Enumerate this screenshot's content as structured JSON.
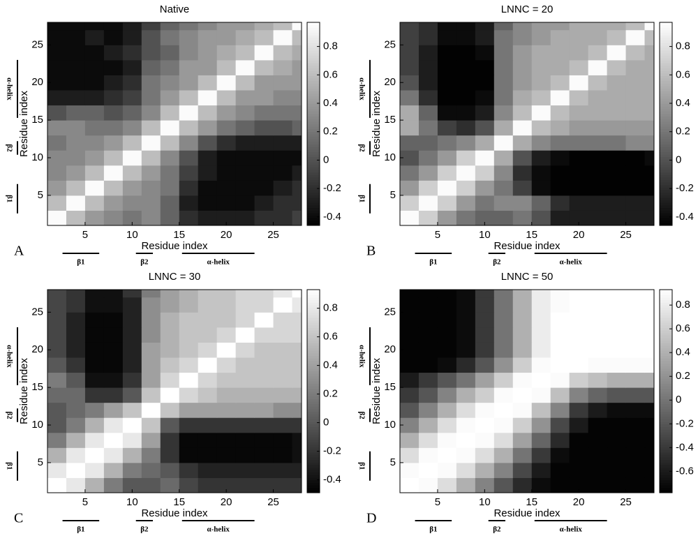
{
  "chart_data": [
    {
      "type": "contour",
      "panel_label": "A",
      "title": "Native",
      "xlabel": "Residue index",
      "ylabel": "Residue index",
      "xlim": [
        1,
        28
      ],
      "ylim": [
        1,
        28
      ],
      "xticks": [
        5,
        10,
        15,
        20,
        25
      ],
      "yticks": [
        5,
        10,
        15,
        20,
        25
      ],
      "zlim": [
        -0.46,
        0.97
      ],
      "zticks": [
        -0.4,
        -0.2,
        0,
        0.2,
        0.4,
        0.6,
        0.8
      ],
      "segments": [
        {
          "label": "β1",
          "start": 2.6,
          "end": 6.5
        },
        {
          "label": "β2",
          "start": 10.4,
          "end": 12.2
        },
        {
          "label": "α-helix",
          "start": 15.3,
          "end": 23
        }
      ],
      "x": [
        2,
        4,
        6,
        8,
        10,
        12,
        14,
        16,
        18,
        20,
        22,
        24,
        26,
        28
      ],
      "y": [
        2,
        4,
        6,
        8,
        10,
        12,
        14,
        16,
        18,
        20,
        22,
        24,
        26,
        28
      ],
      "z": [
        [
          0.95,
          0.6,
          0.4,
          0.3,
          0.2,
          0.3,
          0.1,
          -0.2,
          -0.3,
          -0.3,
          -0.3,
          -0.2,
          -0.2,
          -0.1
        ],
        [
          0.6,
          0.95,
          0.6,
          0.4,
          0.3,
          0.3,
          0.1,
          -0.3,
          -0.4,
          -0.4,
          -0.4,
          -0.3,
          -0.2,
          -0.2
        ],
        [
          0.4,
          0.6,
          0.95,
          0.6,
          0.4,
          0.3,
          0.2,
          -0.2,
          -0.4,
          -0.4,
          -0.4,
          -0.4,
          -0.3,
          -0.2
        ],
        [
          0.3,
          0.4,
          0.6,
          0.95,
          0.6,
          0.4,
          0.2,
          -0.1,
          -0.3,
          -0.4,
          -0.4,
          -0.4,
          -0.4,
          -0.3
        ],
        [
          0.3,
          0.3,
          0.4,
          0.6,
          0.95,
          0.6,
          0.3,
          0,
          -0.3,
          -0.4,
          -0.4,
          -0.4,
          -0.4,
          -0.4
        ],
        [
          0.2,
          0.3,
          0.3,
          0.4,
          0.6,
          0.95,
          0.6,
          0.3,
          0,
          -0.2,
          -0.3,
          -0.3,
          -0.3,
          -0.3
        ],
        [
          0.3,
          0.3,
          0.2,
          0.2,
          0.3,
          0.6,
          0.95,
          0.6,
          0.4,
          0.2,
          0.1,
          0,
          0,
          0.1
        ],
        [
          0,
          0.1,
          0.1,
          0,
          0.1,
          0.3,
          0.6,
          0.95,
          0.6,
          0.4,
          0.3,
          0.2,
          0.2,
          0.2
        ],
        [
          -0.3,
          -0.3,
          -0.3,
          -0.2,
          -0.1,
          0.2,
          0.4,
          0.6,
          0.95,
          0.6,
          0.4,
          0.4,
          0.3,
          0.3
        ],
        [
          -0.4,
          -0.4,
          -0.4,
          -0.3,
          -0.2,
          0.2,
          0.3,
          0.4,
          0.6,
          0.95,
          0.6,
          0.4,
          0.4,
          0.4
        ],
        [
          -0.4,
          -0.4,
          -0.4,
          -0.4,
          -0.3,
          0.1,
          0.2,
          0.4,
          0.4,
          0.6,
          0.95,
          0.6,
          0.5,
          0.4
        ],
        [
          -0.4,
          -0.4,
          -0.4,
          -0.3,
          -0.2,
          0,
          0.1,
          0.3,
          0.4,
          0.5,
          0.6,
          0.95,
          0.6,
          0.5
        ],
        [
          -0.4,
          -0.4,
          -0.3,
          -0.4,
          -0.3,
          0,
          0.2,
          0.3,
          0.4,
          0.4,
          0.5,
          0.6,
          0.95,
          0.6
        ],
        [
          -0.4,
          -0.4,
          -0.4,
          -0.4,
          -0.3,
          -0.1,
          0.1,
          0.2,
          0.3,
          0.4,
          0.4,
          0.5,
          0.6,
          0.95
        ]
      ]
    },
    {
      "type": "contour",
      "panel_label": "B",
      "title": "LNNC = 20",
      "xlabel": "Residue index",
      "ylabel": "Residue index",
      "xlim": [
        1,
        28
      ],
      "ylim": [
        1,
        28
      ],
      "xticks": [
        5,
        10,
        15,
        20,
        25
      ],
      "yticks": [
        5,
        10,
        15,
        20,
        25
      ],
      "zlim": [
        -0.46,
        0.97
      ],
      "zticks": [
        -0.4,
        -0.2,
        0,
        0.2,
        0.4,
        0.6,
        0.8
      ],
      "segments": [
        {
          "label": "β1",
          "start": 2.6,
          "end": 6.5
        },
        {
          "label": "β2",
          "start": 10.4,
          "end": 12.2
        },
        {
          "label": "α-helix",
          "start": 15.3,
          "end": 23
        }
      ],
      "x": [
        2,
        4,
        6,
        8,
        10,
        12,
        14,
        16,
        18,
        20,
        22,
        24,
        26,
        28
      ],
      "y": [
        2,
        4,
        6,
        8,
        10,
        12,
        14,
        16,
        18,
        20,
        22,
        24,
        26,
        28
      ],
      "z": [
        [
          0.95,
          0.7,
          0.4,
          0.2,
          0.1,
          0.1,
          0.2,
          0,
          -0.3,
          -0.3,
          -0.3,
          -0.3,
          -0.3,
          -0.3
        ],
        [
          0.7,
          0.95,
          0.7,
          0.4,
          0.2,
          0.3,
          0.3,
          0.1,
          -0.2,
          -0.3,
          -0.3,
          -0.3,
          -0.3,
          -0.3
        ],
        [
          0.4,
          0.7,
          0.95,
          0.7,
          0.4,
          0.2,
          -0.1,
          -0.4,
          -0.45,
          -0.45,
          -0.45,
          -0.45,
          -0.45,
          -0.45
        ],
        [
          0.2,
          0.4,
          0.7,
          0.95,
          0.7,
          0.3,
          -0.2,
          -0.4,
          -0.45,
          -0.45,
          -0.45,
          -0.45,
          -0.45,
          -0.45
        ],
        [
          0,
          0.2,
          0.4,
          0.7,
          0.95,
          0.5,
          0,
          -0.3,
          -0.4,
          -0.45,
          -0.45,
          -0.45,
          -0.45,
          -0.4
        ],
        [
          0.1,
          0.1,
          0.2,
          0.3,
          0.5,
          0.95,
          0.5,
          0.3,
          0.2,
          0.2,
          0.2,
          0.2,
          0.3,
          0.3
        ],
        [
          0.5,
          0.2,
          -0.1,
          -0.2,
          0,
          0.5,
          0.95,
          0.6,
          0.5,
          0.4,
          0.4,
          0.4,
          0.4,
          0.4
        ],
        [
          0.5,
          0.1,
          -0.4,
          -0.4,
          -0.3,
          0.3,
          0.6,
          0.95,
          0.6,
          0.5,
          0.5,
          0.5,
          0.5,
          0.5
        ],
        [
          0.2,
          -0.2,
          -0.45,
          -0.45,
          -0.4,
          0.2,
          0.5,
          0.6,
          0.95,
          0.6,
          0.5,
          0.5,
          0.5,
          0.5
        ],
        [
          0,
          -0.3,
          -0.45,
          -0.45,
          -0.45,
          0.2,
          0.4,
          0.5,
          0.6,
          0.95,
          0.6,
          0.5,
          0.5,
          0.5
        ],
        [
          -0.1,
          -0.3,
          -0.45,
          -0.45,
          -0.45,
          0.2,
          0.4,
          0.5,
          0.5,
          0.6,
          0.95,
          0.6,
          0.5,
          0.5
        ],
        [
          -0.1,
          -0.3,
          -0.45,
          -0.45,
          -0.4,
          0.2,
          0.4,
          0.5,
          0.5,
          0.5,
          0.6,
          0.95,
          0.6,
          0.5
        ],
        [
          -0.1,
          -0.2,
          -0.4,
          -0.4,
          -0.3,
          0.2,
          0.3,
          0.4,
          0.5,
          0.5,
          0.5,
          0.6,
          0.95,
          0.6
        ],
        [
          -0.1,
          -0.2,
          -0.4,
          -0.4,
          -0.3,
          0.1,
          0.3,
          0.4,
          0.4,
          0.5,
          0.5,
          0.5,
          0.6,
          0.95
        ]
      ]
    },
    {
      "type": "contour",
      "panel_label": "C",
      "title": "LNNC = 30",
      "xlabel": "Residue index",
      "ylabel": "Residue index",
      "xlim": [
        1,
        28
      ],
      "ylim": [
        1,
        28
      ],
      "xticks": [
        5,
        10,
        15,
        20,
        25
      ],
      "yticks": [
        5,
        10,
        15,
        20,
        25
      ],
      "zlim": [
        -0.49,
        0.93
      ],
      "zticks": [
        -0.4,
        -0.2,
        0,
        0.2,
        0.4,
        0.6,
        0.8
      ],
      "segments": [
        {
          "label": "β1",
          "start": 2.6,
          "end": 6.5
        },
        {
          "label": "β2",
          "start": 10.4,
          "end": 12.2
        },
        {
          "label": "α-helix",
          "start": 15.3,
          "end": 23
        }
      ],
      "x": [
        2,
        4,
        6,
        8,
        10,
        12,
        14,
        16,
        18,
        20,
        22,
        24,
        26,
        28
      ],
      "y": [
        2,
        4,
        6,
        8,
        10,
        12,
        14,
        16,
        18,
        20,
        22,
        24,
        26,
        28
      ],
      "z": [
        [
          0.93,
          0.8,
          0.5,
          0.2,
          0,
          0,
          0.1,
          -0.1,
          -0.2,
          -0.2,
          -0.2,
          -0.2,
          -0.2,
          -0.2
        ],
        [
          0.8,
          0.93,
          0.8,
          0.5,
          0.2,
          0.1,
          0,
          -0.2,
          -0.3,
          -0.3,
          -0.3,
          -0.3,
          -0.3,
          -0.3
        ],
        [
          0.5,
          0.8,
          0.93,
          0.8,
          0.5,
          0.2,
          -0.2,
          -0.45,
          -0.45,
          -0.45,
          -0.45,
          -0.45,
          -0.45,
          -0.4
        ],
        [
          0.2,
          0.5,
          0.8,
          0.93,
          0.8,
          0.4,
          -0.2,
          -0.45,
          -0.45,
          -0.45,
          -0.45,
          -0.45,
          -0.45,
          -0.4
        ],
        [
          0,
          0.2,
          0.5,
          0.8,
          0.93,
          0.6,
          0,
          -0.2,
          -0.2,
          -0.2,
          -0.2,
          -0.2,
          -0.2,
          -0.2
        ],
        [
          0,
          0.1,
          0.2,
          0.4,
          0.6,
          0.93,
          0.6,
          0.4,
          0.4,
          0.4,
          0.4,
          0.4,
          0.3,
          0.3
        ],
        [
          0.1,
          0.1,
          -0.2,
          -0.2,
          0,
          0.6,
          0.93,
          0.7,
          0.6,
          0.5,
          0.5,
          0.5,
          0.5,
          0.5
        ],
        [
          0.2,
          0,
          -0.4,
          -0.4,
          -0.2,
          0.4,
          0.7,
          0.93,
          0.7,
          0.6,
          0.6,
          0.6,
          0.6,
          0.6
        ],
        [
          0,
          -0.2,
          -0.45,
          -0.45,
          -0.3,
          0.4,
          0.6,
          0.7,
          0.93,
          0.7,
          0.6,
          0.6,
          0.6,
          0.6
        ],
        [
          -0.1,
          -0.3,
          -0.45,
          -0.45,
          -0.3,
          0.4,
          0.5,
          0.6,
          0.7,
          0.93,
          0.7,
          0.6,
          0.6,
          0.6
        ],
        [
          -0.1,
          -0.3,
          -0.45,
          -0.45,
          -0.3,
          0.3,
          0.5,
          0.6,
          0.6,
          0.7,
          0.93,
          0.7,
          0.7,
          0.7
        ],
        [
          -0.1,
          -0.3,
          -0.45,
          -0.45,
          -0.3,
          0.3,
          0.5,
          0.6,
          0.6,
          0.6,
          0.7,
          0.93,
          0.7,
          0.7
        ],
        [
          -0.1,
          -0.2,
          -0.4,
          -0.4,
          -0.3,
          0.3,
          0.4,
          0.5,
          0.6,
          0.6,
          0.7,
          0.7,
          0.93,
          0.8
        ],
        [
          -0.1,
          -0.2,
          -0.4,
          -0.4,
          -0.2,
          0.2,
          0.4,
          0.5,
          0.6,
          0.6,
          0.7,
          0.7,
          0.8,
          0.93
        ]
      ]
    },
    {
      "type": "contour",
      "panel_label": "D",
      "title": "LNNC = 50",
      "xlabel": "Residue index",
      "ylabel": "Residue index",
      "xlim": [
        1,
        28
      ],
      "ylim": [
        1,
        28
      ],
      "xticks": [
        5,
        10,
        15,
        20,
        25
      ],
      "yticks": [
        5,
        10,
        15,
        20,
        25
      ],
      "zlim": [
        -0.78,
        0.93
      ],
      "zticks": [
        -0.6,
        -0.4,
        -0.2,
        0,
        0.2,
        0.4,
        0.6,
        0.8
      ],
      "segments": [
        {
          "label": "β1",
          "start": 2.6,
          "end": 6.5
        },
        {
          "label": "β2",
          "start": 10.4,
          "end": 12.2
        },
        {
          "label": "α-helix",
          "start": 15.3,
          "end": 23
        }
      ],
      "x": [
        2,
        4,
        6,
        8,
        10,
        12,
        14,
        16,
        18,
        20,
        22,
        24,
        26,
        28
      ],
      "y": [
        2,
        4,
        6,
        8,
        10,
        12,
        14,
        16,
        18,
        20,
        22,
        24,
        26,
        28
      ],
      "z": [
        [
          0.93,
          0.9,
          0.7,
          0.4,
          0.1,
          -0.2,
          -0.5,
          -0.7,
          -0.75,
          -0.75,
          -0.75,
          -0.75,
          -0.75,
          -0.75
        ],
        [
          0.9,
          0.93,
          0.9,
          0.7,
          0.4,
          0.1,
          -0.3,
          -0.6,
          -0.75,
          -0.75,
          -0.75,
          -0.75,
          -0.75,
          -0.75
        ],
        [
          0.7,
          0.9,
          0.93,
          0.9,
          0.7,
          0.4,
          0,
          -0.4,
          -0.7,
          -0.75,
          -0.75,
          -0.75,
          -0.75,
          -0.75
        ],
        [
          0.4,
          0.7,
          0.9,
          0.93,
          0.9,
          0.7,
          0.3,
          -0.1,
          -0.5,
          -0.75,
          -0.75,
          -0.75,
          -0.75,
          -0.75
        ],
        [
          0.1,
          0.4,
          0.7,
          0.9,
          0.93,
          0.9,
          0.6,
          0.2,
          -0.3,
          -0.6,
          -0.75,
          -0.75,
          -0.75,
          -0.75
        ],
        [
          -0.2,
          0.1,
          0.4,
          0.7,
          0.9,
          0.93,
          0.9,
          0.5,
          0.1,
          -0.4,
          -0.6,
          -0.7,
          -0.7,
          -0.7
        ],
        [
          -0.4,
          -0.2,
          0.1,
          0.4,
          0.6,
          0.9,
          0.93,
          0.9,
          0.5,
          0.1,
          -0.1,
          -0.2,
          -0.2,
          -0.2
        ],
        [
          -0.6,
          -0.4,
          -0.2,
          0,
          0.3,
          0.6,
          0.9,
          0.93,
          0.9,
          0.6,
          0.5,
          0.4,
          0.4,
          0.4
        ],
        [
          -0.75,
          -0.75,
          -0.7,
          -0.5,
          -0.2,
          0.2,
          0.6,
          0.9,
          0.93,
          0.93,
          0.9,
          0.9,
          0.9,
          0.9
        ],
        [
          -0.75,
          -0.75,
          -0.75,
          -0.7,
          -0.4,
          0,
          0.4,
          0.8,
          0.93,
          0.93,
          0.93,
          0.93,
          0.93,
          0.93
        ],
        [
          -0.75,
          -0.75,
          -0.75,
          -0.7,
          -0.4,
          0,
          0.4,
          0.8,
          0.93,
          0.93,
          0.93,
          0.93,
          0.93,
          0.93
        ],
        [
          -0.75,
          -0.75,
          -0.75,
          -0.7,
          -0.4,
          0,
          0.4,
          0.8,
          0.93,
          0.93,
          0.93,
          0.93,
          0.93,
          0.93
        ],
        [
          -0.75,
          -0.75,
          -0.75,
          -0.7,
          -0.4,
          0,
          0.4,
          0.8,
          0.9,
          0.93,
          0.93,
          0.93,
          0.93,
          0.93
        ],
        [
          -0.75,
          -0.75,
          -0.75,
          -0.7,
          -0.4,
          0,
          0.4,
          0.8,
          0.9,
          0.93,
          0.93,
          0.93,
          0.93,
          0.93
        ]
      ]
    }
  ]
}
